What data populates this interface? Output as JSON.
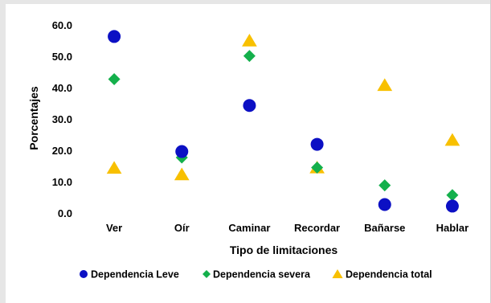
{
  "chart_data": {
    "type": "scatter",
    "categories": [
      "Ver",
      "Oír",
      "Caminar",
      "Recordar",
      "Bañarse",
      "Hablar"
    ],
    "series": [
      {
        "name": "Dependencia Leve",
        "marker": "circle",
        "color": "#0c10c4",
        "values": [
          56.3,
          19.6,
          34.3,
          21.9,
          2.7,
          2.2
        ]
      },
      {
        "name": "Dependencia severa",
        "marker": "diamond",
        "color": "#14b04c",
        "values": [
          42.7,
          17.7,
          50.1,
          14.5,
          8.8,
          5.7
        ]
      },
      {
        "name": "Dependencia total",
        "marker": "triangle",
        "color": "#f8c000",
        "values": [
          14.4,
          12.3,
          55.0,
          14.5,
          40.8,
          23.3
        ]
      }
    ],
    "title": "",
    "xlabel": "Tipo de limitaciones",
    "ylabel": "Porcentajes",
    "ylim": [
      0,
      60
    ],
    "yticks": [
      "0.0",
      "10.0",
      "20.0",
      "30.0",
      "40.0",
      "50.0",
      "60.0"
    ],
    "grid": false,
    "legend_position": "bottom"
  }
}
